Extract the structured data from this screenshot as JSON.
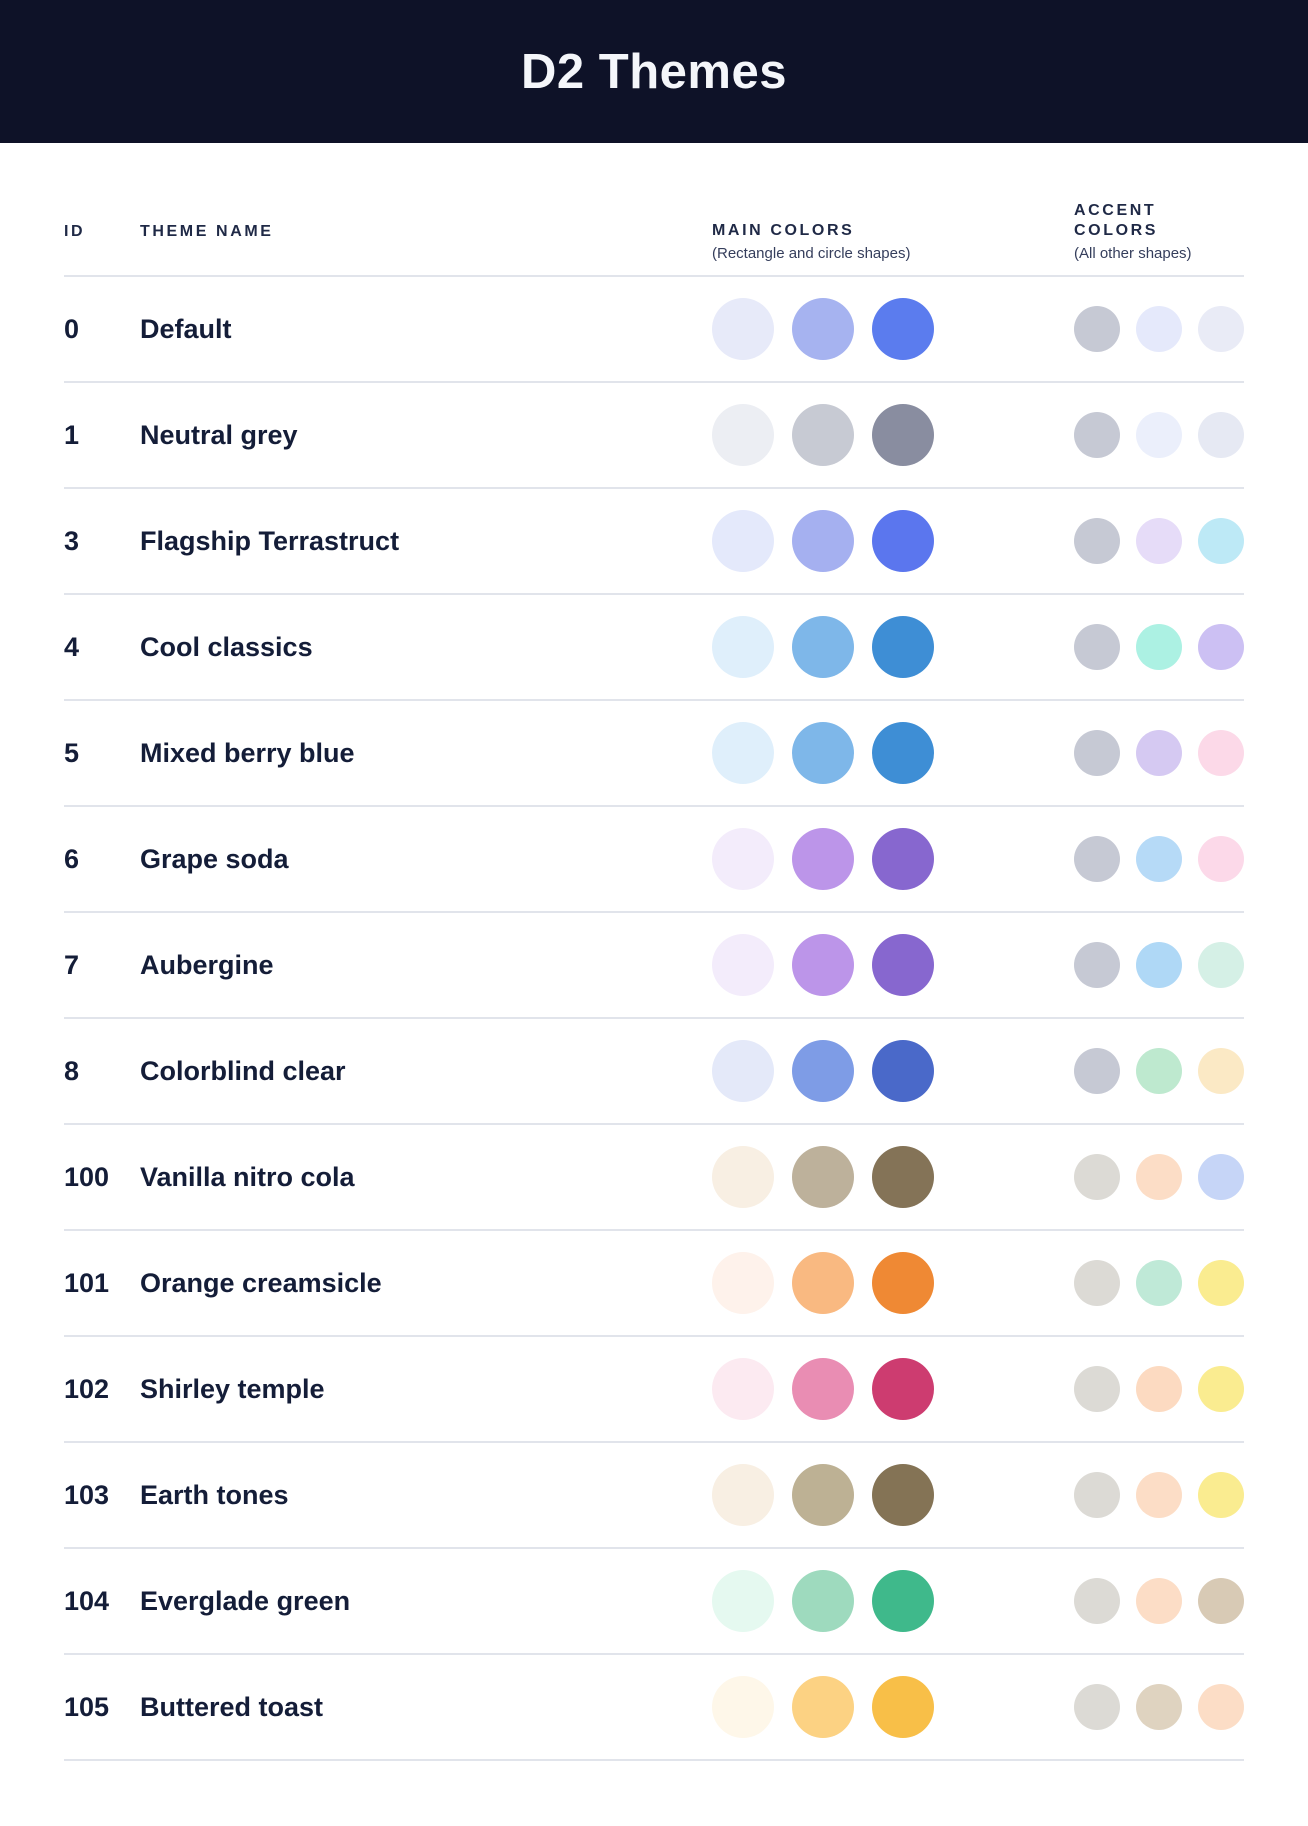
{
  "header": {
    "title": "D2 Themes",
    "background_color": "#0E1228",
    "title_color": "#F4F6FA"
  },
  "table": {
    "divider_color": "#E1E4EB",
    "columns": {
      "id_label": "ID",
      "name_label": "THEME NAME",
      "main_label": "MAIN COLORS",
      "main_sublabel": "(Rectangle and circle shapes)",
      "accent_label": "ACCENT COLORS",
      "accent_sublabel": "(All other shapes)"
    },
    "rows": [
      {
        "id": "0",
        "name": "Default",
        "main": [
          "#E7EAF9",
          "#A6B3F0",
          "#5B7CEE"
        ],
        "accent": [
          "#C6C9D4",
          "#E5E9FB",
          "#E9EBF6"
        ]
      },
      {
        "id": "1",
        "name": "Neutral grey",
        "main": [
          "#ECEEF3",
          "#C7CAD3",
          "#898DA0"
        ],
        "accent": [
          "#C6C9D4",
          "#EBEFFB",
          "#E6E9F3"
        ]
      },
      {
        "id": "3",
        "name": "Flagship Terrastruct",
        "main": [
          "#E4E9FB",
          "#A5B0F0",
          "#5B76EE"
        ],
        "accent": [
          "#C6C9D4",
          "#E6DCF8",
          "#BDE9F6"
        ]
      },
      {
        "id": "4",
        "name": "Cool classics",
        "main": [
          "#DFEFFB",
          "#7EB7E9",
          "#3E8ED5"
        ],
        "accent": [
          "#C6C9D4",
          "#ACF1E3",
          "#CCC0F3"
        ]
      },
      {
        "id": "5",
        "name": "Mixed berry blue",
        "main": [
          "#DFEFFB",
          "#7EB7E9",
          "#3E8ED5"
        ],
        "accent": [
          "#C6C9D4",
          "#D5C9F2",
          "#FCD9E8"
        ]
      },
      {
        "id": "6",
        "name": "Grape soda",
        "main": [
          "#F3ECFB",
          "#BC95E9",
          "#8767CF"
        ],
        "accent": [
          "#C6C9D4",
          "#B6DAF7",
          "#FCD9E9"
        ]
      },
      {
        "id": "7",
        "name": "Aubergine",
        "main": [
          "#F3ECFB",
          "#BC95E9",
          "#8767CF"
        ],
        "accent": [
          "#C6C9D4",
          "#AFD8F6",
          "#D5F0E6"
        ]
      },
      {
        "id": "8",
        "name": "Colorblind clear",
        "main": [
          "#E4E9F9",
          "#7E9CE6",
          "#4A69C9"
        ],
        "accent": [
          "#C6C9D4",
          "#BEE9CF",
          "#FBE9C5"
        ]
      },
      {
        "id": "100",
        "name": "Vanilla nitro cola",
        "main": [
          "#F8EFE3",
          "#BDB19B",
          "#847357"
        ],
        "accent": [
          "#DCDAD5",
          "#FCDDC6",
          "#C6D5F7"
        ]
      },
      {
        "id": "101",
        "name": "Orange creamsicle",
        "main": [
          "#FEF2EB",
          "#F9B981",
          "#EF8934"
        ],
        "accent": [
          "#DCDAD5",
          "#BFE9D7",
          "#FAEC90"
        ]
      },
      {
        "id": "102",
        "name": "Shirley temple",
        "main": [
          "#FCEAF1",
          "#E98DB3",
          "#CD3C70"
        ],
        "accent": [
          "#DCDAD5",
          "#FCDAC1",
          "#FAEC90"
        ]
      },
      {
        "id": "103",
        "name": "Earth tones",
        "main": [
          "#F8EFE3",
          "#BDB194",
          "#847355"
        ],
        "accent": [
          "#DCDAD5",
          "#FCDDC6",
          "#FAEC90"
        ]
      },
      {
        "id": "104",
        "name": "Everglade green",
        "main": [
          "#E5F9F0",
          "#9EDABE",
          "#3FB98B"
        ],
        "accent": [
          "#DCDAD5",
          "#FCDDC6",
          "#D8CAB5"
        ]
      },
      {
        "id": "105",
        "name": "Buttered toast",
        "main": [
          "#FEF7E9",
          "#FCD283",
          "#F8BF48"
        ],
        "accent": [
          "#DCDAD5",
          "#DFD3C0",
          "#FCDDC6"
        ]
      }
    ]
  }
}
